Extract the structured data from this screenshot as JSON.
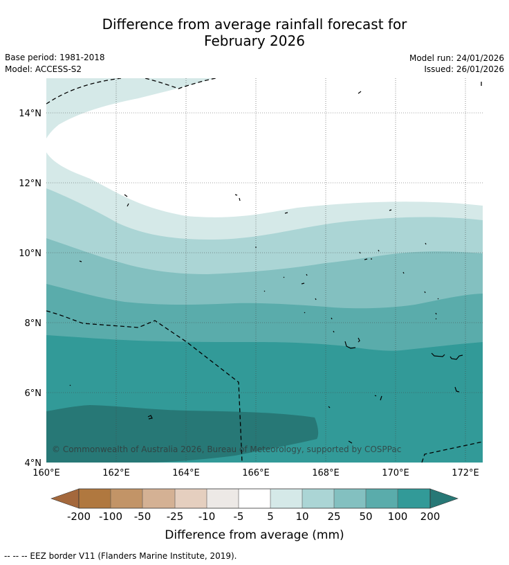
{
  "header": {
    "title_line1": "Difference from average rainfall forecast for",
    "title_line2": "February 2026",
    "base_period": "Base period: 1981-2018",
    "model": "Model: ACCESS-S2",
    "model_run": "Model run: 24/01/2026",
    "issued": "Issued: 26/01/2026"
  },
  "map": {
    "lat_labels": [
      "14°N",
      "12°N",
      "10°N",
      "8°N",
      "6°N",
      "4°N"
    ],
    "lon_labels": [
      "160°E",
      "162°E",
      "164°E",
      "166°E",
      "168°E",
      "170°E",
      "172°E"
    ],
    "copyright": "© Commonwealth of Australia 2026, Bureau of Meteorology, supported by COSPPac",
    "colors": {
      "band_5_10": "#d5e9e8",
      "band_10_25": "#abd5d5",
      "band_25_50": "#83c0c0",
      "band_50_100": "#5aacab",
      "band_100_200": "#329a98",
      "band_gt_200": "#277876"
    }
  },
  "legend": {
    "title": "Difference from average (mm)",
    "ticks": [
      "-200",
      "-100",
      "-50",
      "-25",
      "-10",
      "-5",
      "5",
      "10",
      "25",
      "50",
      "100",
      "200"
    ],
    "colors": [
      "#a4683c",
      "#b0783f",
      "#c29467",
      "#d4b194",
      "#e5cfbf",
      "#ede9e6",
      "#ffffff",
      "#d5e9e8",
      "#abd5d5",
      "#83c0c0",
      "#5aacab",
      "#329a98",
      "#277876"
    ]
  },
  "footer": {
    "note": "--  --  -- EEZ border V11 (Flanders Marine Institute, 2019)."
  }
}
